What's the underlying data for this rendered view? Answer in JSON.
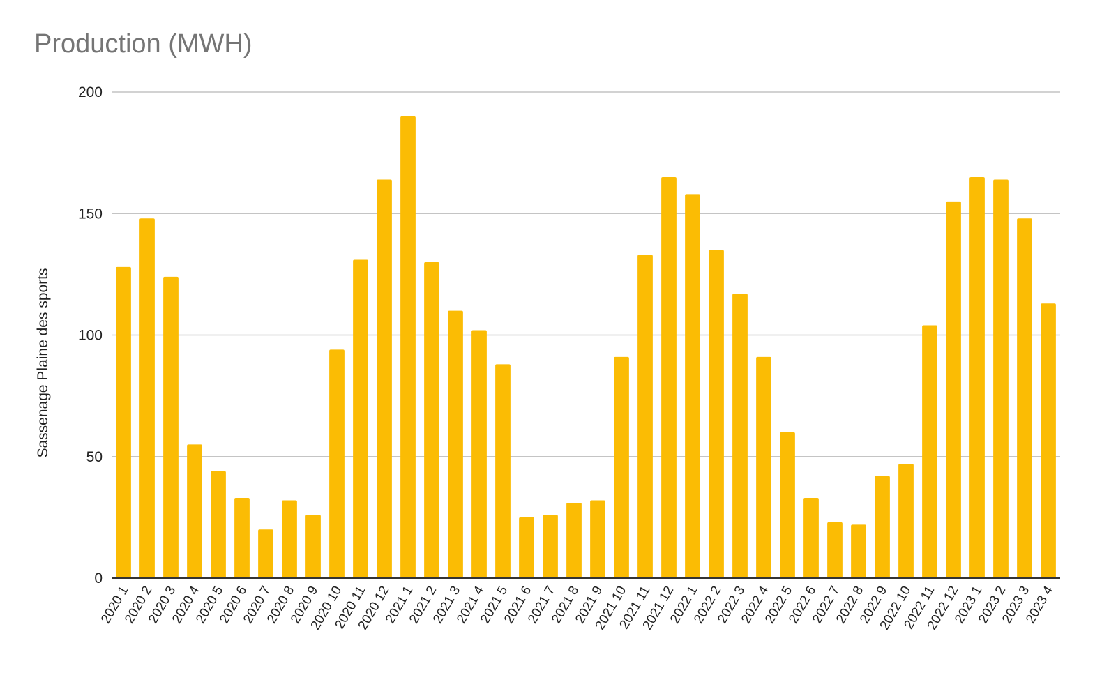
{
  "chart_data": {
    "type": "bar",
    "title": "Production (MWH)",
    "xlabel": "",
    "ylabel": "Sassenage Plaine des sports",
    "ylim": [
      0,
      200
    ],
    "yticks": [
      0,
      50,
      100,
      150,
      200
    ],
    "grid": true,
    "legend": "none",
    "bar_color": "#FBBC04",
    "categories": [
      "2020 1",
      "2020 2",
      "2020 3",
      "2020 4",
      "2020 5",
      "2020 6",
      "2020 7",
      "2020 8",
      "2020 9",
      "2020 10",
      "2020 11",
      "2020 12",
      "2021 1",
      "2021 2",
      "2021 3",
      "2021 4",
      "2021 5",
      "2021 6",
      "2021 7",
      "2021 8",
      "2021 9",
      "2021 10",
      "2021 11",
      "2021 12",
      "2022 1",
      "2022 2",
      "2022 3",
      "2022 4",
      "2022 5",
      "2022 6",
      "2022 7",
      "2022 8",
      "2022 9",
      "2022 10",
      "2022 11",
      "2022 12",
      "2023 1",
      "2023 2",
      "2023 3",
      "2023 4"
    ],
    "values": [
      128,
      148,
      124,
      55,
      44,
      33,
      20,
      32,
      26,
      94,
      131,
      164,
      190,
      130,
      110,
      102,
      88,
      25,
      26,
      31,
      32,
      91,
      133,
      165,
      158,
      135,
      117,
      91,
      60,
      33,
      23,
      22,
      42,
      47,
      104,
      155,
      165,
      164,
      148,
      113
    ]
  }
}
